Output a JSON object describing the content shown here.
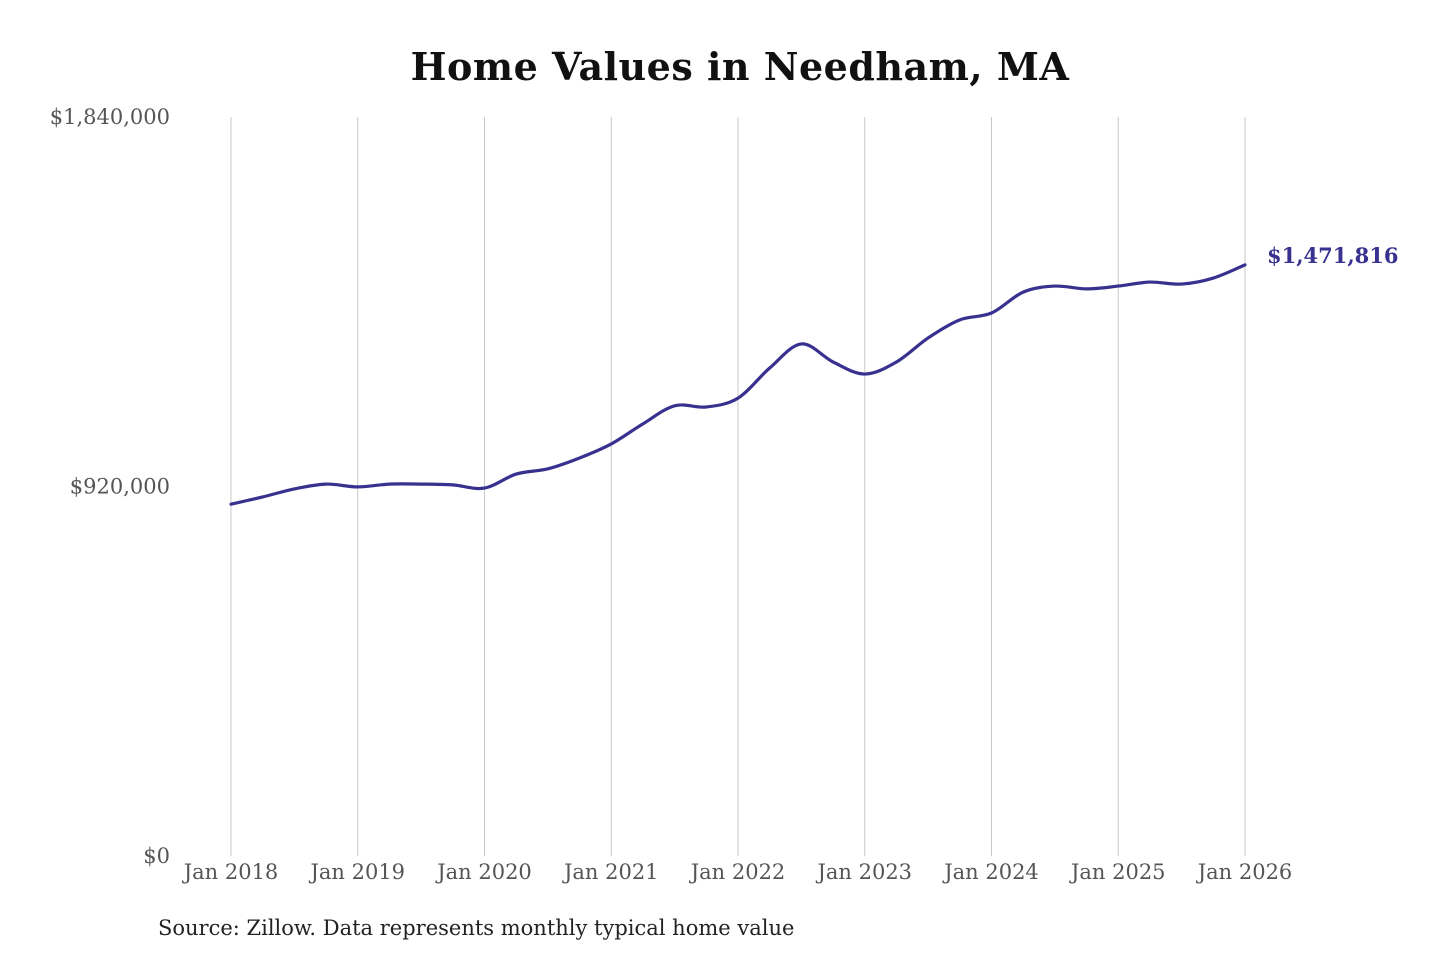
{
  "chart_data": {
    "type": "line",
    "title": "Home Values in Needham, MA",
    "source": "Source: Zillow. Data represents monthly typical home value",
    "ylim": [
      0,
      1840000
    ],
    "y_ticks": [
      0,
      920000,
      1840000
    ],
    "y_tick_labels": [
      "$0",
      "$920,000",
      "$1,840,000"
    ],
    "x_tick_labels": [
      "Jan 2018",
      "Jan 2019",
      "Jan 2020",
      "Jan 2021",
      "Jan 2022",
      "Jan 2023",
      "Jan 2024",
      "Jan 2025",
      "Jan 2026"
    ],
    "grid": "vertical",
    "line_color": "#38318f",
    "end_label": "$1,471,816",
    "series": [
      {
        "x": [
          "2018-01",
          "2018-04",
          "2018-07",
          "2018-10",
          "2019-01",
          "2019-04",
          "2019-07",
          "2019-10",
          "2020-01",
          "2020-04",
          "2020-07",
          "2020-10",
          "2021-01",
          "2021-04",
          "2021-07",
          "2021-10",
          "2022-01",
          "2022-04",
          "2022-07",
          "2022-10",
          "2023-01",
          "2023-04",
          "2023-07",
          "2023-10",
          "2024-01",
          "2024-04",
          "2024-07",
          "2024-10",
          "2025-01",
          "2025-04",
          "2025-07",
          "2025-10",
          "2026-01"
        ],
        "values": [
          876000,
          894000,
          914000,
          926000,
          919000,
          926000,
          926000,
          924000,
          916000,
          951000,
          964000,
          991000,
          1026000,
          1076000,
          1121000,
          1118000,
          1140000,
          1215000,
          1275000,
          1230000,
          1200000,
          1230000,
          1290000,
          1335000,
          1352000,
          1404000,
          1419000,
          1412000,
          1419000,
          1429000,
          1424000,
          1439000,
          1471816
        ]
      }
    ]
  }
}
